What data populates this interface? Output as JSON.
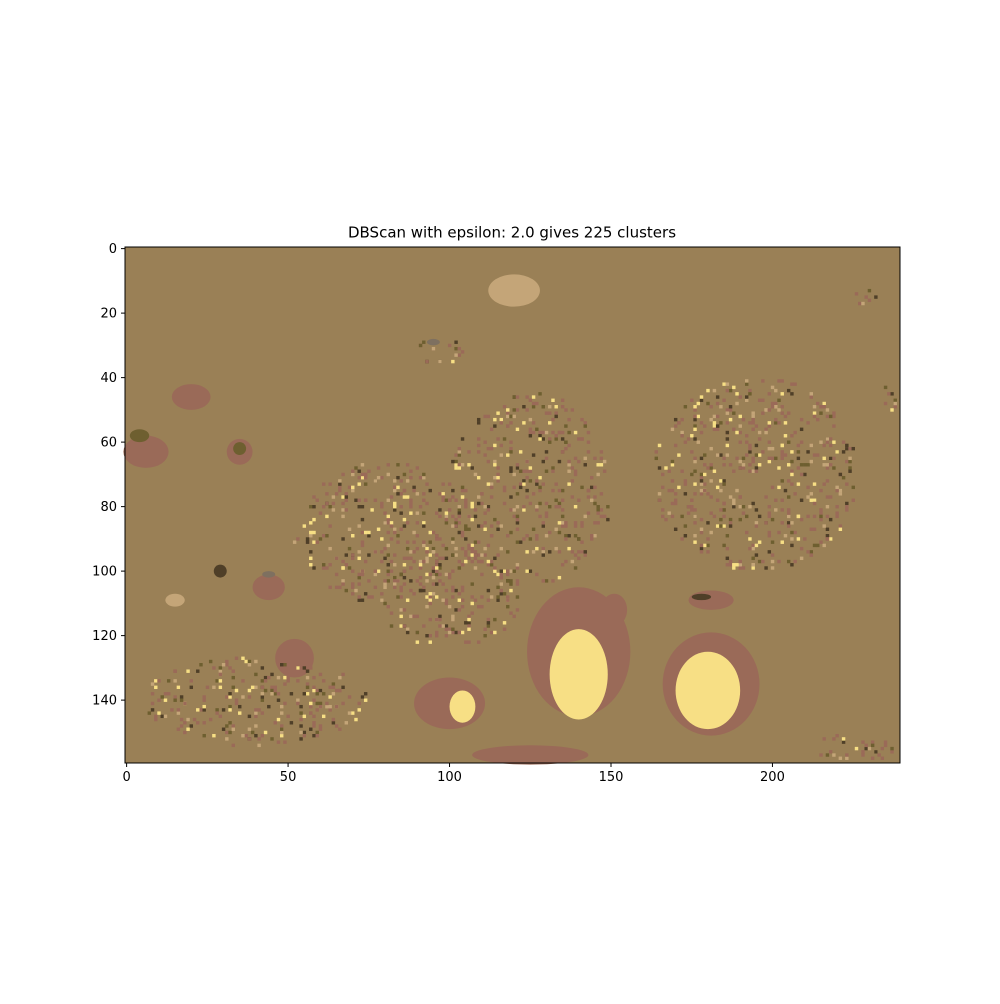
{
  "chart_data": {
    "type": "heatmap",
    "title": "DBScan with epsilon: 2.0 gives 225 clusters",
    "xlabel": "",
    "ylabel": "",
    "xlim": [
      -0.5,
      239.5
    ],
    "ylim": [
      159.5,
      -0.5
    ],
    "x_ticks": [
      0,
      50,
      100,
      150,
      200
    ],
    "y_ticks": [
      0,
      20,
      40,
      60,
      80,
      100,
      120,
      140
    ],
    "grid": false,
    "legend": "none",
    "image_size": [
      240,
      160
    ],
    "colors": {
      "background": "#9A8056",
      "noise": "#9A6A58",
      "light_cluster": "#F7DF85",
      "tan_cluster": "#C4A578",
      "dark_cluster": "#4F3F28",
      "gray_cluster": "#7E7060",
      "olive_cluster": "#6E5F30"
    },
    "regions": [
      {
        "label": "light_cluster",
        "cx": 140,
        "cy": 132,
        "rx": 9,
        "ry": 14
      },
      {
        "label": "light_cluster",
        "cx": 180,
        "cy": 137,
        "rx": 10,
        "ry": 12
      },
      {
        "label": "light_cluster",
        "cx": 104,
        "cy": 142,
        "rx": 4,
        "ry": 5
      },
      {
        "label": "tan_cluster",
        "cx": 120,
        "cy": 13,
        "rx": 8,
        "ry": 5
      },
      {
        "label": "tan_cluster",
        "cx": 15,
        "cy": 109,
        "rx": 3,
        "ry": 2
      },
      {
        "label": "noise",
        "cx": 140,
        "cy": 125,
        "rx": 16,
        "ry": 20
      },
      {
        "label": "noise",
        "cx": 181,
        "cy": 135,
        "rx": 15,
        "ry": 16
      },
      {
        "label": "noise",
        "cx": 100,
        "cy": 141,
        "rx": 11,
        "ry": 8
      },
      {
        "label": "noise",
        "cx": 6,
        "cy": 63,
        "rx": 7,
        "ry": 5
      },
      {
        "label": "noise",
        "cx": 52,
        "cy": 127,
        "rx": 6,
        "ry": 6
      },
      {
        "label": "noise",
        "cx": 20,
        "cy": 46,
        "rx": 6,
        "ry": 4
      },
      {
        "label": "noise",
        "cx": 35,
        "cy": 63,
        "rx": 4,
        "ry": 4
      },
      {
        "label": "noise",
        "cx": 44,
        "cy": 105,
        "rx": 5,
        "ry": 4
      },
      {
        "label": "noise",
        "cx": 125,
        "cy": 157,
        "rx": 18,
        "ry": 3
      },
      {
        "label": "noise",
        "cx": 151,
        "cy": 112,
        "rx": 4,
        "ry": 5
      },
      {
        "label": "noise",
        "cx": 181,
        "cy": 109,
        "rx": 7,
        "ry": 3
      },
      {
        "label": "gray_cluster",
        "cx": 95,
        "cy": 29,
        "rx": 2,
        "ry": 1
      },
      {
        "label": "gray_cluster",
        "cx": 44,
        "cy": 101,
        "rx": 2,
        "ry": 1
      },
      {
        "label": "olive_cluster",
        "cx": 4,
        "cy": 58,
        "rx": 3,
        "ry": 2
      },
      {
        "label": "olive_cluster",
        "cx": 35,
        "cy": 62,
        "rx": 2,
        "ry": 2
      },
      {
        "label": "dark_cluster",
        "cx": 178,
        "cy": 108,
        "rx": 3,
        "ry": 1
      },
      {
        "label": "dark_cluster",
        "cx": 29,
        "cy": 100,
        "rx": 2,
        "ry": 2
      }
    ],
    "speckle_areas": [
      {
        "cx": 80,
        "cy": 88,
        "rx": 28,
        "ry": 22
      },
      {
        "cx": 125,
        "cy": 75,
        "rx": 25,
        "ry": 30
      },
      {
        "cx": 195,
        "cy": 70,
        "rx": 32,
        "ry": 30
      },
      {
        "cx": 100,
        "cy": 108,
        "rx": 22,
        "ry": 16
      },
      {
        "cx": 40,
        "cy": 140,
        "rx": 35,
        "ry": 14
      },
      {
        "cx": 97,
        "cy": 32,
        "rx": 8,
        "ry": 4
      },
      {
        "cx": 225,
        "cy": 155,
        "rx": 14,
        "ry": 4
      },
      {
        "cx": 228,
        "cy": 15,
        "rx": 4,
        "ry": 3
      },
      {
        "cx": 236,
        "cy": 47,
        "rx": 4,
        "ry": 4
      }
    ]
  }
}
